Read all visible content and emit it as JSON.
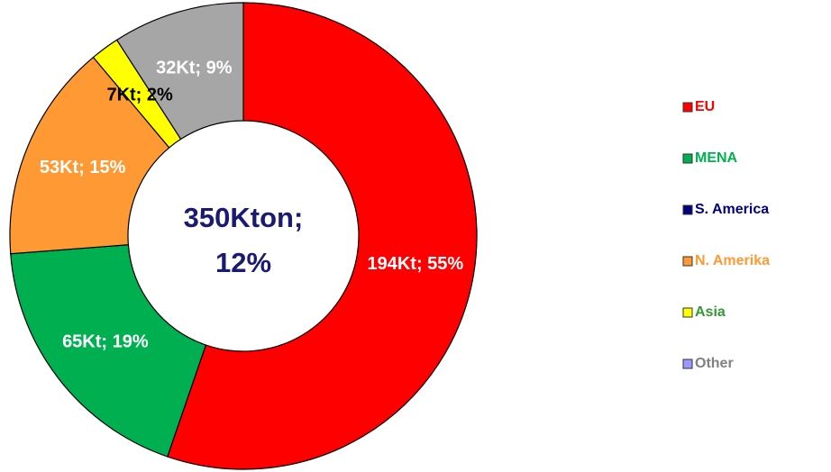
{
  "chart_data": {
    "type": "donut",
    "categories": [
      "EU",
      "MENA",
      "S. America",
      "N. Amerika",
      "Asia",
      "Other"
    ],
    "values": [
      194,
      65,
      null,
      53,
      7,
      32
    ],
    "value_labels": [
      "194Kt; 55%",
      "65Kt; 19%",
      null,
      "53Kt; 15%",
      "7Kt; 2%",
      "32Kt; 9%"
    ],
    "colors": [
      "#ff0000",
      "#00b050",
      "#000080",
      "#ff9933",
      "#ffff00",
      "#a6a6a6"
    ],
    "label_colors": [
      "#ffffff",
      "#ffffff",
      "#ffffff",
      "#ffffff",
      "#000000",
      "#ffffff"
    ],
    "legend_colors": [
      "#ff0000",
      "#00b050",
      "#000080",
      "#ff9933",
      "#ffff00",
      "#9999ff"
    ],
    "legend_text_colors": [
      "#ff0000",
      "#00b050",
      "#000080",
      "#ff9933",
      "#339933",
      "#808080"
    ],
    "center_label": [
      "350Kton;",
      "12%"
    ],
    "legend": "right"
  }
}
